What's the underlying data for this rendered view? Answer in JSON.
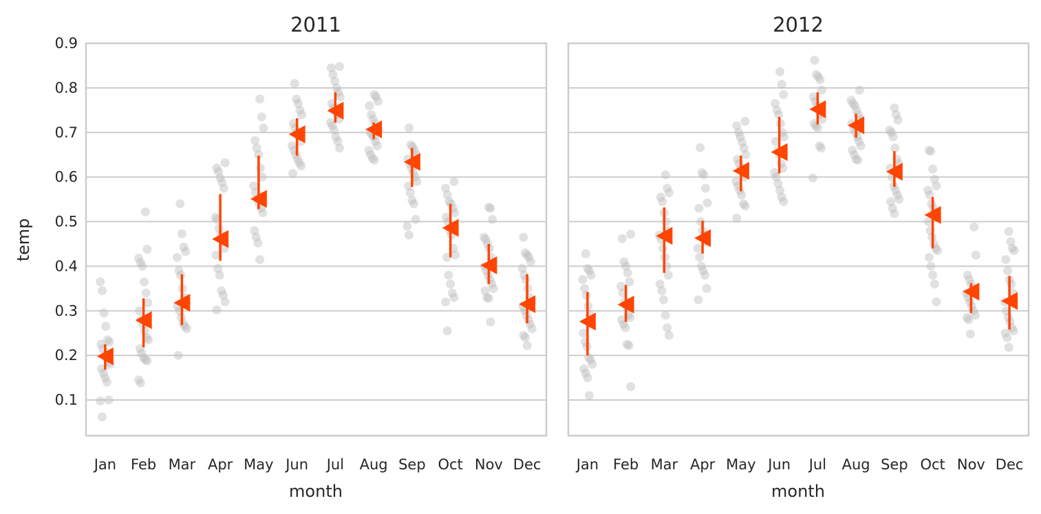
{
  "chart_data": {
    "type": "scatter",
    "xlabel": "month",
    "ylabel": "temp",
    "ylim": [
      0.02,
      0.9
    ],
    "yticks": [
      "0.1",
      "0.2",
      "0.3",
      "0.4",
      "0.5",
      "0.6",
      "0.7",
      "0.8",
      "0.9"
    ],
    "categories": [
      "Jan",
      "Feb",
      "Mar",
      "Apr",
      "May",
      "Jun",
      "Jul",
      "Aug",
      "Sep",
      "Oct",
      "Nov",
      "Dec"
    ],
    "grid": "horizontal",
    "colors": {
      "mean_marker": "#ff4500",
      "points": "#bdbdbd",
      "grid": "#cccccc",
      "spine": "#cccccc"
    },
    "panels": [
      {
        "title": "2011",
        "means": [
          0.198,
          0.279,
          0.318,
          0.461,
          0.551,
          0.696,
          0.749,
          0.707,
          0.634,
          0.486,
          0.402,
          0.315
        ],
        "ci_low": [
          0.168,
          0.218,
          0.268,
          0.412,
          0.528,
          0.648,
          0.722,
          0.685,
          0.578,
          0.42,
          0.36,
          0.272
        ],
        "ci_high": [
          0.225,
          0.328,
          0.382,
          0.562,
          0.648,
          0.732,
          0.79,
          0.722,
          0.665,
          0.54,
          0.45,
          0.382
        ],
        "points": [
          [
            0.365,
            0.345,
            0.295,
            0.265,
            0.235,
            0.23,
            0.225,
            0.215,
            0.2,
            0.195,
            0.185,
            0.18,
            0.17,
            0.16,
            0.15,
            0.14,
            0.1,
            0.098,
            0.062
          ],
          [
            0.522,
            0.438,
            0.418,
            0.408,
            0.4,
            0.365,
            0.34,
            0.318,
            0.3,
            0.28,
            0.27,
            0.255,
            0.24,
            0.235,
            0.215,
            0.205,
            0.195,
            0.19,
            0.188,
            0.145,
            0.138
          ],
          [
            0.54,
            0.473,
            0.443,
            0.433,
            0.42,
            0.39,
            0.38,
            0.35,
            0.33,
            0.32,
            0.31,
            0.3,
            0.285,
            0.272,
            0.265,
            0.26,
            0.2
          ],
          [
            0.632,
            0.62,
            0.612,
            0.598,
            0.588,
            0.575,
            0.51,
            0.505,
            0.485,
            0.47,
            0.455,
            0.44,
            0.425,
            0.395,
            0.38,
            0.345,
            0.335,
            0.32,
            0.302
          ],
          [
            0.775,
            0.735,
            0.71,
            0.682,
            0.665,
            0.65,
            0.62,
            0.6,
            0.58,
            0.565,
            0.55,
            0.54,
            0.53,
            0.52,
            0.48,
            0.465,
            0.452,
            0.415
          ],
          [
            0.81,
            0.775,
            0.765,
            0.75,
            0.74,
            0.72,
            0.71,
            0.7,
            0.69,
            0.68,
            0.67,
            0.66,
            0.65,
            0.64,
            0.632,
            0.625,
            0.608
          ],
          [
            0.848,
            0.845,
            0.83,
            0.815,
            0.8,
            0.79,
            0.78,
            0.765,
            0.755,
            0.75,
            0.74,
            0.73,
            0.722,
            0.715,
            0.705,
            0.69,
            0.68,
            0.665
          ],
          [
            0.785,
            0.78,
            0.77,
            0.76,
            0.74,
            0.73,
            0.72,
            0.71,
            0.705,
            0.7,
            0.695,
            0.69,
            0.68,
            0.67,
            0.66,
            0.65,
            0.642,
            0.638
          ],
          [
            0.71,
            0.672,
            0.668,
            0.66,
            0.65,
            0.64,
            0.63,
            0.62,
            0.61,
            0.6,
            0.59,
            0.58,
            0.565,
            0.548,
            0.54,
            0.505,
            0.49,
            0.47
          ],
          [
            0.59,
            0.575,
            0.56,
            0.545,
            0.54,
            0.53,
            0.52,
            0.51,
            0.5,
            0.48,
            0.47,
            0.44,
            0.425,
            0.42,
            0.38,
            0.36,
            0.34,
            0.33,
            0.32,
            0.255
          ],
          [
            0.532,
            0.53,
            0.505,
            0.465,
            0.46,
            0.45,
            0.44,
            0.42,
            0.41,
            0.4,
            0.39,
            0.38,
            0.37,
            0.36,
            0.35,
            0.345,
            0.33,
            0.328,
            0.275
          ],
          [
            0.465,
            0.43,
            0.425,
            0.42,
            0.41,
            0.395,
            0.38,
            0.37,
            0.35,
            0.33,
            0.32,
            0.31,
            0.3,
            0.29,
            0.28,
            0.27,
            0.26,
            0.245,
            0.24,
            0.222
          ]
        ]
      },
      {
        "title": "2012",
        "means": [
          0.276,
          0.314,
          0.468,
          0.463,
          0.614,
          0.656,
          0.752,
          0.716,
          0.612,
          0.515,
          0.343,
          0.322
        ],
        "ci_low": [
          0.2,
          0.275,
          0.385,
          0.428,
          0.568,
          0.608,
          0.718,
          0.688,
          0.578,
          0.44,
          0.295,
          0.258
        ],
        "ci_high": [
          0.342,
          0.358,
          0.532,
          0.502,
          0.648,
          0.735,
          0.79,
          0.742,
          0.658,
          0.555,
          0.362,
          0.378
        ],
        "points": [
          [
            0.428,
            0.395,
            0.39,
            0.38,
            0.37,
            0.35,
            0.335,
            0.31,
            0.29,
            0.27,
            0.25,
            0.23,
            0.22,
            0.195,
            0.19,
            0.18,
            0.17,
            0.16,
            0.15,
            0.11
          ],
          [
            0.472,
            0.462,
            0.41,
            0.4,
            0.385,
            0.365,
            0.355,
            0.34,
            0.32,
            0.31,
            0.29,
            0.285,
            0.28,
            0.27,
            0.262,
            0.225,
            0.222,
            0.13
          ],
          [
            0.605,
            0.575,
            0.565,
            0.555,
            0.545,
            0.52,
            0.5,
            0.48,
            0.47,
            0.46,
            0.44,
            0.42,
            0.4,
            0.38,
            0.36,
            0.345,
            0.325,
            0.29,
            0.262,
            0.245
          ],
          [
            0.666,
            0.61,
            0.605,
            0.575,
            0.542,
            0.53,
            0.5,
            0.48,
            0.47,
            0.455,
            0.44,
            0.42,
            0.4,
            0.39,
            0.38,
            0.35,
            0.325
          ],
          [
            0.725,
            0.715,
            0.7,
            0.69,
            0.678,
            0.665,
            0.65,
            0.64,
            0.63,
            0.62,
            0.61,
            0.6,
            0.59,
            0.58,
            0.57,
            0.56,
            0.54,
            0.535,
            0.508
          ],
          [
            0.836,
            0.808,
            0.785,
            0.765,
            0.75,
            0.74,
            0.72,
            0.7,
            0.69,
            0.68,
            0.66,
            0.65,
            0.63,
            0.62,
            0.61,
            0.6,
            0.585,
            0.57,
            0.555,
            0.545
          ],
          [
            0.862,
            0.83,
            0.825,
            0.818,
            0.795,
            0.78,
            0.77,
            0.76,
            0.75,
            0.74,
            0.73,
            0.72,
            0.715,
            0.71,
            0.67,
            0.665,
            0.598
          ],
          [
            0.795,
            0.772,
            0.765,
            0.76,
            0.75,
            0.74,
            0.73,
            0.72,
            0.71,
            0.7,
            0.69,
            0.68,
            0.67,
            0.66,
            0.65,
            0.64,
            0.638
          ],
          [
            0.755,
            0.74,
            0.728,
            0.705,
            0.7,
            0.69,
            0.665,
            0.64,
            0.63,
            0.62,
            0.6,
            0.58,
            0.57,
            0.56,
            0.55,
            0.545,
            0.53,
            0.518
          ],
          [
            0.66,
            0.658,
            0.618,
            0.595,
            0.58,
            0.57,
            0.56,
            0.54,
            0.53,
            0.52,
            0.51,
            0.5,
            0.48,
            0.465,
            0.45,
            0.44,
            0.435,
            0.42,
            0.4,
            0.38,
            0.36,
            0.32
          ],
          [
            0.488,
            0.425,
            0.38,
            0.37,
            0.36,
            0.35,
            0.345,
            0.34,
            0.33,
            0.32,
            0.31,
            0.3,
            0.29,
            0.285,
            0.28,
            0.248
          ],
          [
            0.478,
            0.455,
            0.44,
            0.435,
            0.415,
            0.39,
            0.37,
            0.36,
            0.34,
            0.32,
            0.3,
            0.285,
            0.275,
            0.262,
            0.255,
            0.25,
            0.24,
            0.218
          ]
        ]
      }
    ]
  }
}
